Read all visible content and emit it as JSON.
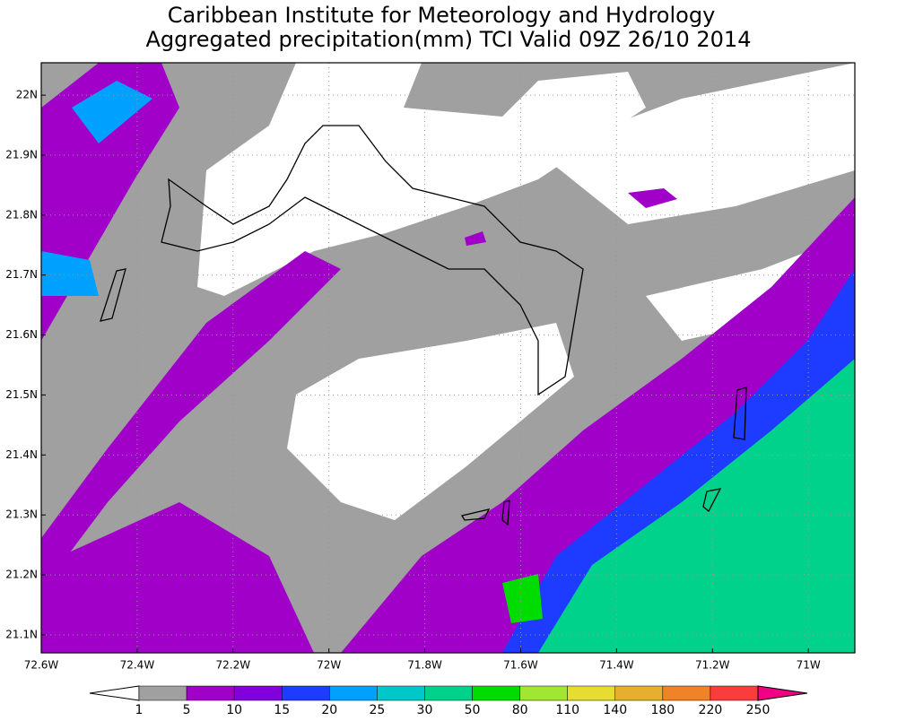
{
  "chart_data": {
    "type": "map",
    "title": "Caribbean Institute for Meteorology and Hydrology",
    "subtitle": "Aggregated precipitation(mm) TCI Valid 09Z 26/10 2014",
    "xlim": [
      -72.6,
      -70.903
    ],
    "ylim": [
      21.07,
      22.054
    ],
    "xticks": [
      {
        "value": -72.6,
        "label": "72.6W"
      },
      {
        "value": -72.4,
        "label": "72.4W"
      },
      {
        "value": -72.2,
        "label": "72.2W"
      },
      {
        "value": -72.0,
        "label": "72W"
      },
      {
        "value": -71.8,
        "label": "71.8W"
      },
      {
        "value": -71.6,
        "label": "71.6W"
      },
      {
        "value": -71.4,
        "label": "71.4W"
      },
      {
        "value": -71.2,
        "label": "71.2W"
      },
      {
        "value": -71.0,
        "label": "71W"
      }
    ],
    "yticks": [
      {
        "value": 21.1,
        "label": "21.1N"
      },
      {
        "value": 21.2,
        "label": "21.2N"
      },
      {
        "value": 21.3,
        "label": "21.3N"
      },
      {
        "value": 21.4,
        "label": "21.4N"
      },
      {
        "value": 21.5,
        "label": "21.5N"
      },
      {
        "value": 21.6,
        "label": "21.6N"
      },
      {
        "value": 21.7,
        "label": "21.7N"
      },
      {
        "value": 21.8,
        "label": "21.8N"
      },
      {
        "value": 21.9,
        "label": "21.9N"
      },
      {
        "value": 22.0,
        "label": "22N"
      }
    ],
    "grid": true,
    "colorbar": {
      "levels": [
        1,
        5,
        10,
        15,
        20,
        25,
        30,
        50,
        80,
        110,
        140,
        180,
        220,
        250
      ],
      "colors": [
        "#ffffff",
        "#a0a0a0",
        "#a000c8",
        "#8200dc",
        "#1e3cff",
        "#00a0ff",
        "#00c8c8",
        "#00d28c",
        "#00dc00",
        "#a0e632",
        "#e6dc32",
        "#e6af2d",
        "#f08228",
        "#fa3c3c",
        "#f00082"
      ]
    }
  }
}
